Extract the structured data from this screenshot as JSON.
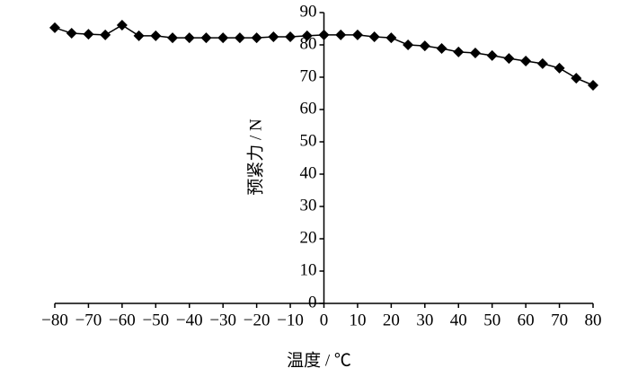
{
  "chart_data": {
    "type": "line",
    "x_label": "温度 / ℃",
    "y_label": "预紧力 / N",
    "xlim": [
      -80,
      80
    ],
    "ylim": [
      0,
      90
    ],
    "xticks": [
      {
        "value": -80,
        "label": "−80"
      },
      {
        "value": -70,
        "label": "−70"
      },
      {
        "value": -60,
        "label": "−60"
      },
      {
        "value": -50,
        "label": "−50"
      },
      {
        "value": -40,
        "label": "−40"
      },
      {
        "value": -30,
        "label": "−30"
      },
      {
        "value": -20,
        "label": "−20"
      },
      {
        "value": -10,
        "label": "−10"
      },
      0,
      10,
      20,
      30,
      40,
      50,
      60,
      70,
      80
    ],
    "yticks": [
      0,
      10,
      20,
      30,
      40,
      50,
      60,
      70,
      80,
      90
    ],
    "x": [
      -80,
      -75,
      -70,
      -65,
      -60,
      -55,
      -50,
      -45,
      -40,
      -35,
      -30,
      -25,
      -20,
      -15,
      -10,
      -5,
      0,
      5,
      10,
      15,
      20,
      25,
      30,
      35,
      40,
      45,
      50,
      55,
      60,
      65,
      70,
      75,
      80
    ],
    "series": [
      {
        "color": "#000000",
        "values": [
          85.3,
          83.6,
          83.3,
          83.1,
          86.1,
          82.8,
          82.8,
          82.2,
          82.2,
          82.2,
          82.2,
          82.2,
          82.2,
          82.5,
          82.5,
          82.8,
          83.1,
          83.1,
          83.1,
          82.5,
          82.2,
          80,
          79.7,
          78.9,
          77.8,
          77.5,
          76.7,
          75.8,
          75,
          74.2,
          72.8,
          69.7,
          67.5
        ]
      }
    ]
  }
}
